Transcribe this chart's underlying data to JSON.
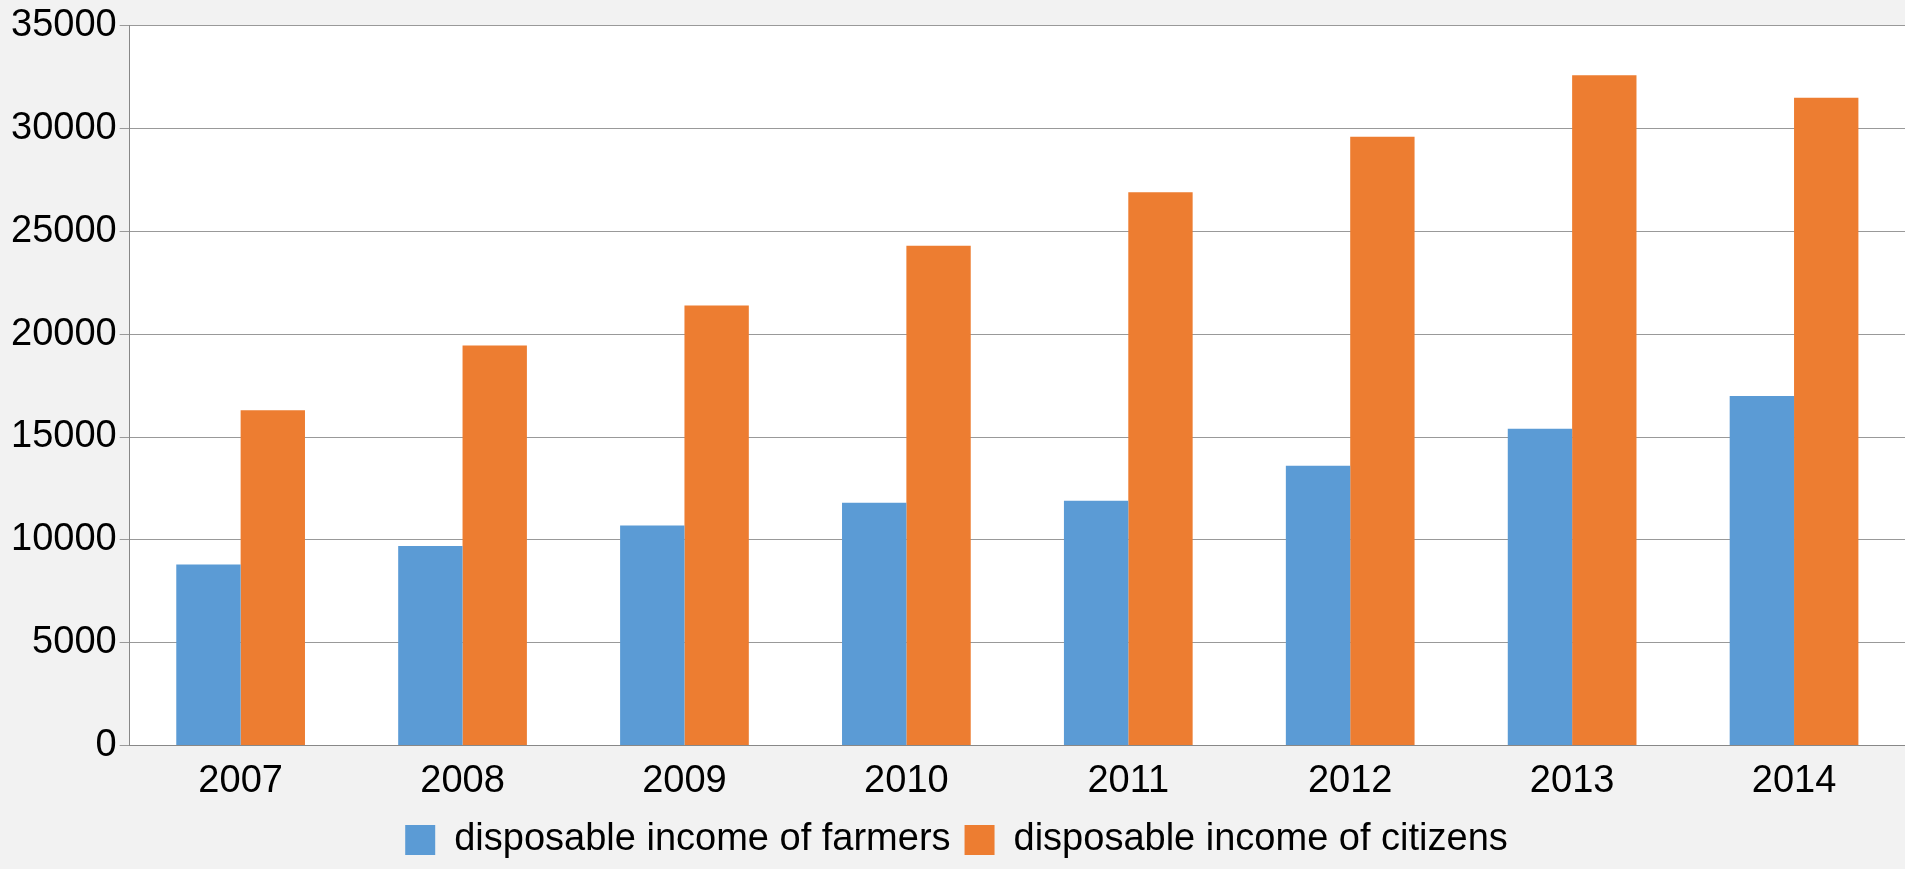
{
  "chart_data": {
    "type": "bar",
    "categories": [
      "2007",
      "2008",
      "2009",
      "2010",
      "2011",
      "2012",
      "2013",
      "2014"
    ],
    "series": [
      {
        "name": "disposable income of farmers",
        "color": "#5b9bd5",
        "values": [
          8800,
          9700,
          10700,
          11800,
          11900,
          13600,
          15400,
          17000
        ]
      },
      {
        "name": "disposable income of citizens",
        "color": "#ed7d31",
        "values": [
          16300,
          19450,
          21400,
          24300,
          26900,
          29600,
          32600,
          31500
        ]
      }
    ],
    "ylim": [
      0,
      35000
    ],
    "yticks": [
      0,
      5000,
      10000,
      15000,
      20000,
      25000,
      30000,
      35000
    ],
    "grid": "y",
    "legend": "bottom"
  }
}
